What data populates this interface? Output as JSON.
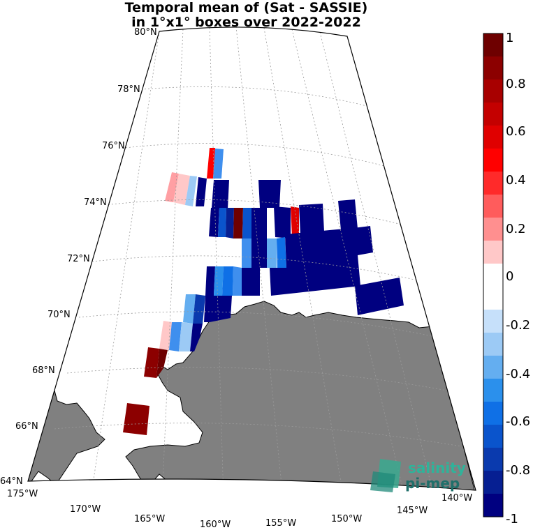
{
  "title": {
    "line1": "Temporal mean of (Sat - SASSIE)",
    "line2": "in 1°x1° boxes over 2022-2022"
  },
  "map": {
    "projection": "polar stereographic",
    "lat_range": [
      64,
      80
    ],
    "lon_range": [
      -175,
      -140
    ],
    "lat_labels": [
      "64°N",
      "66°N",
      "68°N",
      "70°N",
      "72°N",
      "74°N",
      "76°N",
      "78°N",
      "80°N"
    ],
    "lon_labels": [
      "175°W",
      "170°W",
      "165°W",
      "160°W",
      "155°W",
      "150°W",
      "145°W",
      "140°W"
    ],
    "land_color": "#808080",
    "grid": "dashed"
  },
  "colorbar": {
    "min": -1,
    "max": 1,
    "ticks": [
      "1",
      "0.8",
      "0.6",
      "0.4",
      "0.2",
      "0",
      "-0.2",
      "-0.4",
      "-0.6",
      "-0.8",
      "-1"
    ],
    "colors": [
      "#6e0000",
      "#8c0000",
      "#a80000",
      "#c40000",
      "#e00000",
      "#ff0000",
      "#ff2a2a",
      "#ff5c5c",
      "#ff8f8f",
      "#ffc8c8",
      "#ffffff",
      "#ffffff",
      "#c6e0fa",
      "#9ccaf5",
      "#64aef0",
      "#2b90ec",
      "#0f70e6",
      "#0a54cc",
      "#0a3aae",
      "#061f92",
      "#000080"
    ]
  },
  "logo": {
    "line1": "salinity",
    "line2": "pi-mep"
  }
}
